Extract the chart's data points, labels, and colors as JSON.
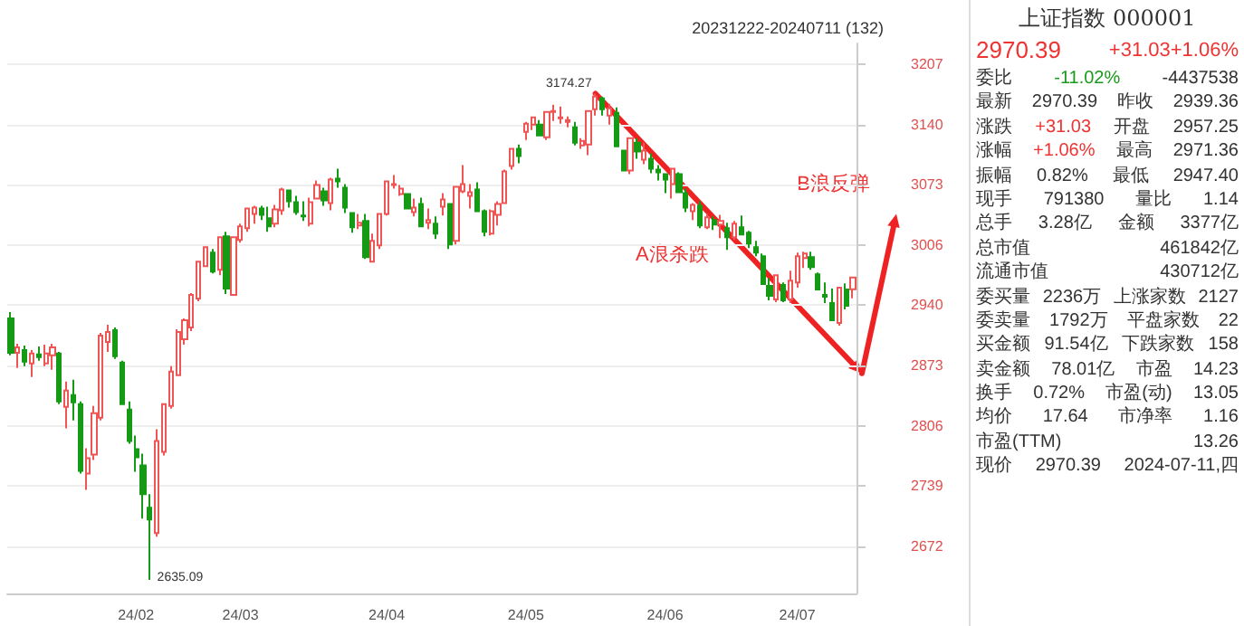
{
  "chart_data": [
    {
      "type": "candlestick",
      "title": "20231222-20240711 (132)",
      "categories": [
        null,
        null,
        null,
        null,
        null,
        null,
        null,
        null,
        null,
        null,
        null,
        null,
        null,
        null,
        null,
        null,
        null,
        null,
        "24/02",
        null,
        null,
        null,
        null,
        null,
        null,
        null,
        null,
        null,
        null,
        null,
        null,
        null,
        null,
        "24/03",
        null,
        null,
        null,
        null,
        null,
        null,
        null,
        null,
        null,
        null,
        null,
        null,
        null,
        null,
        null,
        null,
        null,
        null,
        null,
        null,
        "24/04",
        null,
        null,
        null,
        null,
        null,
        null,
        null,
        null,
        null,
        null,
        null,
        null,
        null,
        null,
        null,
        null,
        null,
        null,
        null,
        "24/05",
        null,
        null,
        null,
        null,
        null,
        null,
        null,
        null,
        null,
        null,
        null,
        null,
        null,
        null,
        null,
        null,
        null,
        null,
        null,
        "24/06",
        null,
        null,
        null,
        null,
        null,
        null,
        null,
        null,
        null,
        null,
        null,
        null,
        null,
        null,
        null,
        null,
        null,
        null,
        "24/07",
        null,
        null,
        null,
        null,
        null,
        null,
        null,
        null
      ],
      "ohlc": [
        [
          2925,
          2932,
          2884,
          2887
        ],
        [
          2887,
          2897,
          2870,
          2893
        ],
        [
          2890,
          2895,
          2872,
          2877
        ],
        [
          2875,
          2890,
          2860,
          2886
        ],
        [
          2885,
          2894,
          2878,
          2882
        ],
        [
          2875,
          2896,
          2872,
          2886
        ],
        [
          2884,
          2897,
          2868,
          2893
        ],
        [
          2886,
          2888,
          2830,
          2833
        ],
        [
          2827,
          2855,
          2803,
          2845
        ],
        [
          2840,
          2857,
          2812,
          2832
        ],
        [
          2830,
          2833,
          2753,
          2756
        ],
        [
          2753,
          2781,
          2735,
          2770
        ],
        [
          2774,
          2828,
          2768,
          2820
        ],
        [
          2815,
          2909,
          2812,
          2906
        ],
        [
          2899,
          2918,
          2888,
          2910
        ],
        [
          2912,
          2915,
          2880,
          2883
        ],
        [
          2876,
          2878,
          2829,
          2830
        ],
        [
          2824,
          2833,
          2786,
          2789
        ],
        [
          2780,
          2795,
          2755,
          2771
        ],
        [
          2762,
          2775,
          2703,
          2730
        ],
        [
          2715,
          2730,
          2635.09,
          2702
        ],
        [
          2687,
          2802,
          2683,
          2789
        ],
        [
          2777,
          2831,
          2773,
          2830
        ],
        [
          2828,
          2872,
          2825,
          2866
        ],
        [
          2862,
          2913,
          2862,
          2910
        ],
        [
          2902,
          2925,
          2896,
          2923
        ],
        [
          2915,
          2953,
          2911,
          2951
        ],
        [
          2947,
          2989,
          2944,
          2988
        ],
        [
          2983,
          3005,
          2983,
          3004
        ],
        [
          2998,
          3002,
          2975,
          2977
        ],
        [
          2979,
          3015,
          2973,
          3015
        ],
        [
          3016,
          3021,
          2952,
          2958
        ],
        [
          2951,
          3015,
          2951,
          3015
        ],
        [
          3012,
          3030,
          3009,
          3027
        ],
        [
          3025,
          3048,
          3021,
          3047
        ],
        [
          3041,
          3050,
          3030,
          3048
        ],
        [
          3047,
          3050,
          3034,
          3040
        ],
        [
          3036,
          3049,
          3021,
          3027
        ],
        [
          3030,
          3051,
          3026,
          3046
        ],
        [
          3045,
          3070,
          3040,
          3068
        ],
        [
          3067,
          3068,
          3048,
          3055
        ],
        [
          3054,
          3061,
          3040,
          3043
        ],
        [
          3039,
          3055,
          3033,
          3038
        ],
        [
          3030,
          3059,
          3027,
          3054
        ],
        [
          3058,
          3078,
          3057,
          3073
        ],
        [
          3066,
          3070,
          3050,
          3056
        ],
        [
          3053,
          3081,
          3045,
          3079
        ],
        [
          3080,
          3091,
          3070,
          3077
        ],
        [
          3070,
          3074,
          3042,
          3048
        ],
        [
          3042,
          3043,
          3020,
          3026
        ],
        [
          3028,
          3041,
          3024,
          3031
        ],
        [
          3033,
          3041,
          2991,
          2993
        ],
        [
          2988,
          3019,
          2987,
          3011
        ],
        [
          3006,
          3042,
          3002,
          3041
        ],
        [
          3041,
          3078,
          3039,
          3077
        ],
        [
          3073,
          3084,
          3069,
          3074
        ],
        [
          3063,
          3073,
          3061,
          3069
        ],
        [
          3063,
          3064,
          3046,
          3047
        ],
        [
          3043,
          3058,
          3038,
          3048
        ],
        [
          3052,
          3059,
          3027,
          3027
        ],
        [
          3031,
          3047,
          3024,
          3034
        ],
        [
          3030,
          3038,
          3013,
          3019
        ],
        [
          3049,
          3064,
          3039,
          3057
        ],
        [
          3052,
          3053,
          3002,
          3007
        ],
        [
          3011,
          3072,
          3007,
          3071
        ],
        [
          3066,
          3095,
          3064,
          3074
        ],
        [
          3061,
          3074,
          3047,
          3065
        ],
        [
          3068,
          3076,
          3044,
          3044
        ],
        [
          3044,
          3046,
          3016,
          3021
        ],
        [
          3019,
          3046,
          3017,
          3044
        ],
        [
          3040,
          3055,
          3028,
          3052
        ],
        [
          3053,
          3090,
          3052,
          3088
        ],
        [
          3094,
          3114,
          3090,
          3113
        ],
        [
          3113,
          3118,
          3097,
          3105
        ],
        [
          3132,
          3143,
          3123,
          3141
        ],
        [
          3140,
          3148,
          3134,
          3148
        ],
        [
          3140,
          3145,
          3127,
          3128
        ],
        [
          3126,
          3154,
          3123,
          3154
        ],
        [
          3154,
          3162,
          3144,
          3155
        ],
        [
          3147,
          3160,
          3141,
          3148
        ],
        [
          3143,
          3149,
          3137,
          3145
        ],
        [
          3137,
          3143,
          3117,
          3120
        ],
        [
          3117,
          3125,
          3113,
          3122
        ],
        [
          3118,
          3155,
          3106,
          3155
        ],
        [
          3157,
          3174.27,
          3150,
          3171
        ],
        [
          3169,
          3171,
          3150,
          3157
        ],
        [
          3150,
          3163,
          3140,
          3158
        ],
        [
          3153,
          3159,
          3115,
          3116
        ],
        [
          3111,
          3111,
          3088,
          3089
        ],
        [
          3089,
          3126,
          3085,
          3125
        ],
        [
          3120,
          3125,
          3102,
          3110
        ],
        [
          3101,
          3120,
          3096,
          3111
        ],
        [
          3102,
          3108,
          3086,
          3091
        ],
        [
          3090,
          3095,
          3078,
          3087
        ],
        [
          3085,
          3085,
          3064,
          3079
        ],
        [
          3074,
          3091,
          3058,
          3091
        ],
        [
          3085,
          3087,
          3065,
          3065
        ],
        [
          3064,
          3069,
          3043,
          3048
        ],
        [
          3044,
          3053,
          3034,
          3051
        ],
        [
          3050,
          3055,
          3025,
          3028
        ],
        [
          3026,
          3041,
          3024,
          3037
        ],
        [
          3034,
          3038,
          3023,
          3029
        ],
        [
          3029,
          3040,
          3014,
          3033
        ],
        [
          3025,
          3031,
          3001,
          3015
        ],
        [
          3015,
          3033,
          3012,
          3030
        ],
        [
          3026,
          3039,
          3017,
          3018
        ],
        [
          3020,
          3022,
          3003,
          3008
        ],
        [
          3004,
          3011,
          2994,
          2998
        ],
        [
          2994,
          2997,
          2962,
          2963
        ],
        [
          2961,
          2970,
          2945,
          2950
        ],
        [
          2946,
          2973,
          2943,
          2973
        ],
        [
          2962,
          2965,
          2943,
          2945
        ],
        [
          2946,
          2978,
          2942,
          2967
        ],
        [
          2965,
          2998,
          2959,
          2994
        ],
        [
          2992,
          2999,
          2981,
          2997
        ],
        [
          2993,
          2999,
          2979,
          2982
        ],
        [
          2974,
          2976,
          2956,
          2957
        ],
        [
          2951,
          2965,
          2942,
          2949
        ],
        [
          2942,
          2958,
          2922,
          2923
        ],
        [
          2920,
          2960,
          2917,
          2959
        ],
        [
          2957,
          2964,
          2935,
          2939
        ],
        [
          2957.25,
          2971.36,
          2947.4,
          2970.39
        ]
      ],
      "colors": [
        "#159a15",
        "#ee5555",
        "#159a15",
        "#ee5555",
        "#159a15",
        "#ee5555",
        "#ee5555",
        "#159a15",
        "#ee5555",
        "#159a15",
        "#159a15",
        "#ee5555",
        "#ee5555",
        "#ee5555",
        "#ee5555",
        "#159a15",
        "#159a15",
        "#159a15",
        "#159a15",
        "#159a15",
        "#159a15",
        "#ee5555",
        "#ee5555",
        "#ee5555",
        "#ee5555",
        "#ee5555",
        "#ee5555",
        "#ee5555",
        "#ee5555",
        "#159a15",
        "#ee5555",
        "#159a15",
        "#ee5555",
        "#ee5555",
        "#ee5555",
        "#ee5555",
        "#159a15",
        "#159a15",
        "#ee5555",
        "#ee5555",
        "#159a15",
        "#159a15",
        "#159a15",
        "#ee5555",
        "#ee5555",
        "#159a15",
        "#ee5555",
        "#159a15",
        "#159a15",
        "#159a15",
        "#ee5555",
        "#159a15",
        "#ee5555",
        "#ee5555",
        "#ee5555",
        "#ee5555",
        "#ee5555",
        "#159a15",
        "#ee5555",
        "#159a15",
        "#ee5555",
        "#159a15",
        "#ee5555",
        "#159a15",
        "#ee5555",
        "#ee5555",
        "#ee5555",
        "#159a15",
        "#159a15",
        "#ee5555",
        "#ee5555",
        "#ee5555",
        "#ee5555",
        "#159a15",
        "#ee5555",
        "#ee5555",
        "#159a15",
        "#ee5555",
        "#ee5555",
        "#ee5555",
        "#ee5555",
        "#159a15",
        "#ee5555",
        "#ee5555",
        "#ee5555",
        "#159a15",
        "#ee5555",
        "#159a15",
        "#159a15",
        "#ee5555",
        "#159a15",
        "#ee5555",
        "#159a15",
        "#159a15",
        "#159a15",
        "#ee5555",
        "#159a15",
        "#159a15",
        "#ee5555",
        "#159a15",
        "#ee5555",
        "#159a15",
        "#ee5555",
        "#159a15",
        "#ee5555",
        "#159a15",
        "#159a15",
        "#159a15",
        "#159a15",
        "#159a15",
        "#ee5555",
        "#159a15",
        "#ee5555",
        "#ee5555",
        "#ee5555",
        "#159a15",
        "#159a15",
        "#159a15",
        "#159a15",
        "#ee5555",
        "#159a15",
        "#ee5555"
      ],
      "ylim": [
        2620,
        3230
      ],
      "yticks": [
        3207,
        3140,
        3073,
        3006,
        2940,
        2873,
        2806,
        2739,
        2672
      ],
      "grid": "y",
      "annotations": [
        "A浪杀跌",
        "B浪反弹",
        "3174.27",
        "2635.09"
      ]
    },
    {
      "type": "other",
      "title": "上证指数 000001",
      "annotations": [
        "2970.39",
        "+31.03",
        "+1.06%",
        "委比",
        "-11.02%",
        "-4437538",
        "最新",
        "2970.39",
        "昨收",
        "2939.36",
        "涨跌",
        "+31.03",
        "开盘",
        "2957.25",
        "涨幅",
        "+1.06%",
        "最高",
        "2971.36",
        "振幅",
        "0.82%",
        "最低",
        "2947.40",
        "现手",
        "791380",
        "量比",
        "1.14",
        "总手",
        "3.28亿",
        "金额",
        "3377亿",
        "总市值",
        "461842亿",
        "流通市值",
        "430712亿",
        "委买量",
        "2236万",
        "上涨家数",
        "2127",
        "委卖量",
        "1792万",
        "平盘家数",
        "22",
        "买金额",
        "91.54亿",
        "下跌家数",
        "158",
        "卖金额",
        "78.01亿",
        "市盈",
        "14.23",
        "换手",
        "0.72%",
        "市盈(动)",
        "13.05",
        "均价",
        "17.64",
        "市净率",
        "1.16",
        "市盈(TTM)",
        "13.26",
        "现价",
        "2970.39",
        "2024-07-11,四"
      ]
    }
  ]
}
